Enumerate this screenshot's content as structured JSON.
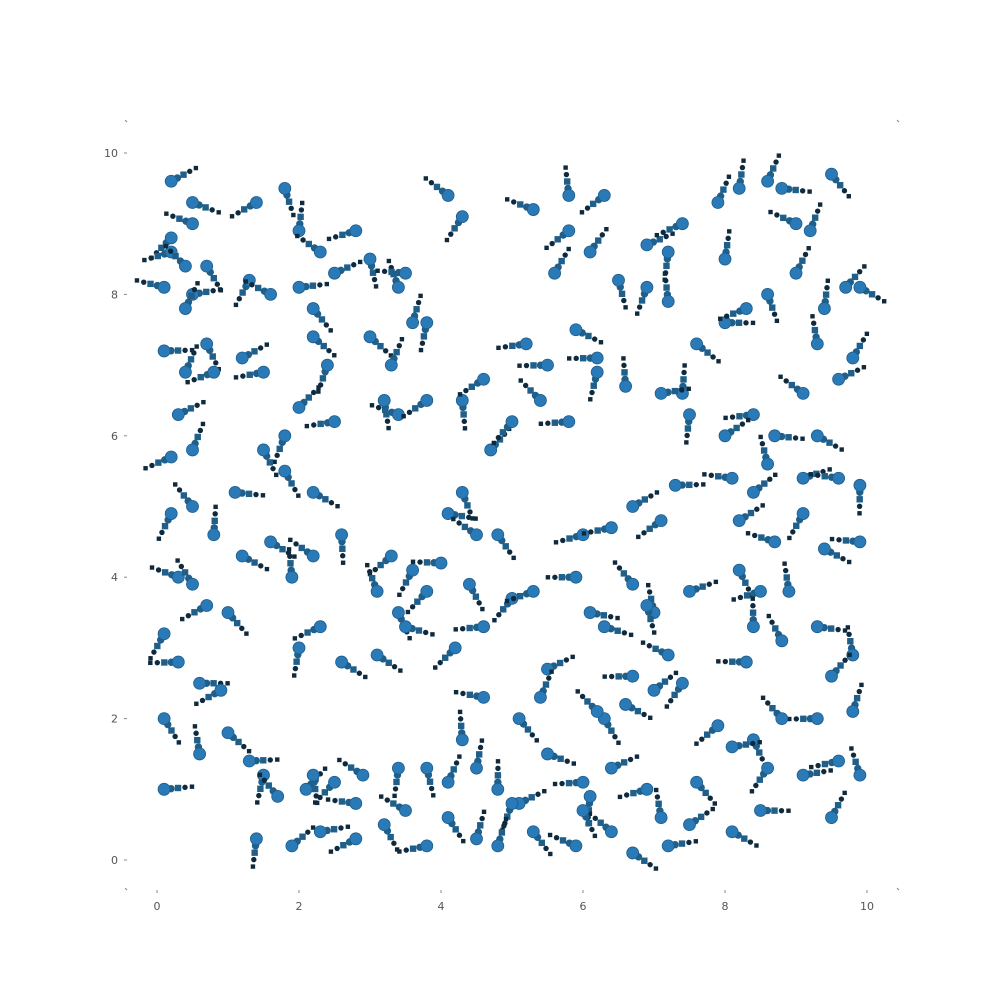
{
  "chart_data": {
    "type": "scatter",
    "title": "",
    "xlabel": "",
    "ylabel": "",
    "xlim": [
      0,
      10
    ],
    "ylim": [
      0,
      10
    ],
    "grid": false,
    "legend": "none",
    "xticks": [
      "0",
      "2",
      "4",
      "6",
      "8",
      "10"
    ],
    "yticks": [
      "0",
      "2",
      "4",
      "6",
      "8",
      "10"
    ],
    "colors": {
      "head": "#2a7ab8",
      "body": "#1f5f8a",
      "tail": "#0f2a3d",
      "axis": "#888888",
      "text": "#555555"
    },
    "description_of_marks": "Comet-like glyphs: large blue head dot followed by a chain of shrinking dark dots/squares (trail).",
    "series": [
      {
        "name": "",
        "points": [
          [
            0.2,
            9.6
          ],
          [
            0.5,
            9.3
          ],
          [
            0.5,
            9.0
          ],
          [
            0.2,
            8.8
          ],
          [
            0.2,
            8.6
          ],
          [
            0.4,
            8.4
          ],
          [
            0.7,
            8.4
          ],
          [
            1.3,
            8.2
          ],
          [
            0.1,
            8.1
          ],
          [
            0.5,
            8.0
          ],
          [
            0.4,
            7.8
          ],
          [
            0.7,
            7.3
          ],
          [
            0.1,
            7.2
          ],
          [
            0.4,
            6.9
          ],
          [
            0.8,
            6.9
          ],
          [
            0.3,
            6.3
          ],
          [
            0.2,
            5.7
          ],
          [
            0.5,
            5.0
          ],
          [
            0.2,
            4.9
          ],
          [
            0.8,
            4.6
          ],
          [
            0.3,
            4.0
          ],
          [
            0.5,
            3.9
          ],
          [
            0.7,
            3.6
          ],
          [
            1.0,
            3.5
          ],
          [
            0.1,
            3.2
          ],
          [
            0.3,
            2.8
          ],
          [
            0.6,
            2.5
          ],
          [
            0.1,
            2.0
          ],
          [
            0.9,
            2.4
          ],
          [
            0.1,
            1.0
          ],
          [
            0.6,
            1.5
          ],
          [
            1.5,
            1.2
          ],
          [
            1.4,
            9.3
          ],
          [
            1.8,
            9.5
          ],
          [
            1.6,
            8.0
          ],
          [
            2.0,
            8.1
          ],
          [
            1.2,
            7.1
          ],
          [
            1.5,
            6.9
          ],
          [
            2.0,
            8.9
          ],
          [
            2.3,
            8.6
          ],
          [
            2.5,
            8.3
          ],
          [
            2.8,
            8.9
          ],
          [
            3.0,
            8.5
          ],
          [
            3.4,
            8.1
          ],
          [
            3.6,
            7.6
          ],
          [
            3.8,
            7.6
          ],
          [
            3.5,
            8.3
          ],
          [
            2.2,
            7.8
          ],
          [
            2.2,
            7.4
          ],
          [
            2.4,
            7.0
          ],
          [
            3.0,
            7.4
          ],
          [
            3.3,
            7.0
          ],
          [
            3.4,
            6.3
          ],
          [
            3.8,
            6.5
          ],
          [
            2.0,
            6.4
          ],
          [
            2.5,
            6.2
          ],
          [
            3.2,
            6.5
          ],
          [
            1.8,
            6.0
          ],
          [
            1.5,
            5.8
          ],
          [
            1.8,
            5.5
          ],
          [
            2.2,
            5.2
          ],
          [
            0.5,
            5.8
          ],
          [
            1.1,
            5.2
          ],
          [
            1.6,
            4.5
          ],
          [
            1.2,
            4.3
          ],
          [
            2.2,
            4.3
          ],
          [
            2.6,
            4.6
          ],
          [
            3.3,
            4.3
          ],
          [
            3.6,
            4.1
          ],
          [
            3.8,
            3.8
          ],
          [
            4.0,
            4.2
          ],
          [
            4.4,
            3.9
          ],
          [
            4.1,
            4.9
          ],
          [
            4.3,
            5.2
          ],
          [
            4.5,
            4.6
          ],
          [
            4.8,
            4.6
          ],
          [
            3.1,
            3.8
          ],
          [
            3.4,
            3.5
          ],
          [
            3.5,
            3.3
          ],
          [
            1.9,
            4.0
          ],
          [
            2.3,
            3.3
          ],
          [
            2.6,
            2.8
          ],
          [
            2.0,
            3.0
          ],
          [
            3.1,
            2.9
          ],
          [
            4.2,
            3.0
          ],
          [
            4.6,
            3.3
          ],
          [
            5.0,
            3.7
          ],
          [
            5.3,
            3.8
          ],
          [
            5.5,
            2.7
          ],
          [
            5.4,
            2.3
          ],
          [
            5.1,
            2.0
          ],
          [
            4.6,
            2.3
          ],
          [
            4.3,
            1.7
          ],
          [
            4.5,
            1.3
          ],
          [
            4.8,
            1.0
          ],
          [
            5.1,
            0.8
          ],
          [
            5.3,
            0.4
          ],
          [
            5.5,
            1.5
          ],
          [
            6.0,
            1.1
          ],
          [
            6.1,
            0.9
          ],
          [
            6.4,
            1.3
          ],
          [
            6.6,
            2.2
          ],
          [
            6.3,
            2.0
          ],
          [
            6.7,
            2.6
          ],
          [
            7.0,
            2.4
          ],
          [
            7.4,
            2.5
          ],
          [
            7.2,
            2.9
          ],
          [
            7.0,
            3.5
          ],
          [
            7.5,
            3.8
          ],
          [
            6.9,
            3.6
          ],
          [
            6.7,
            3.9
          ],
          [
            6.3,
            3.3
          ],
          [
            6.1,
            3.5
          ],
          [
            5.9,
            4.0
          ],
          [
            6.0,
            4.6
          ],
          [
            6.4,
            4.7
          ],
          [
            6.7,
            5.0
          ],
          [
            7.1,
            4.8
          ],
          [
            7.3,
            5.3
          ],
          [
            7.5,
            6.3
          ],
          [
            7.4,
            6.6
          ],
          [
            7.1,
            6.6
          ],
          [
            7.6,
            7.3
          ],
          [
            8.0,
            7.6
          ],
          [
            7.2,
            7.9
          ],
          [
            6.9,
            8.1
          ],
          [
            6.5,
            8.2
          ],
          [
            6.9,
            8.7
          ],
          [
            7.2,
            8.6
          ],
          [
            7.4,
            9.0
          ],
          [
            7.9,
            9.3
          ],
          [
            8.2,
            9.5
          ],
          [
            8.8,
            9.5
          ],
          [
            9.0,
            9.0
          ],
          [
            8.6,
            9.6
          ],
          [
            9.5,
            9.7
          ],
          [
            9.2,
            8.9
          ],
          [
            9.0,
            8.3
          ],
          [
            8.6,
            8.0
          ],
          [
            8.3,
            7.8
          ],
          [
            8.0,
            8.5
          ],
          [
            9.4,
            7.8
          ],
          [
            9.7,
            8.1
          ],
          [
            9.9,
            8.1
          ],
          [
            9.3,
            7.3
          ],
          [
            9.8,
            7.1
          ],
          [
            9.6,
            6.8
          ],
          [
            9.1,
            6.6
          ],
          [
            8.4,
            6.3
          ],
          [
            8.0,
            6.0
          ],
          [
            8.7,
            6.0
          ],
          [
            9.3,
            6.0
          ],
          [
            8.6,
            5.6
          ],
          [
            8.1,
            5.4
          ],
          [
            8.4,
            5.2
          ],
          [
            9.1,
            5.4
          ],
          [
            9.6,
            5.4
          ],
          [
            9.9,
            5.3
          ],
          [
            9.1,
            4.9
          ],
          [
            8.2,
            4.8
          ],
          [
            8.7,
            4.5
          ],
          [
            9.4,
            4.4
          ],
          [
            9.9,
            4.5
          ],
          [
            8.2,
            4.1
          ],
          [
            8.5,
            3.8
          ],
          [
            8.9,
            3.8
          ],
          [
            8.4,
            3.3
          ],
          [
            8.3,
            2.8
          ],
          [
            8.8,
            3.1
          ],
          [
            9.3,
            3.3
          ],
          [
            9.8,
            2.9
          ],
          [
            9.5,
            2.6
          ],
          [
            9.8,
            2.1
          ],
          [
            9.3,
            2.0
          ],
          [
            8.8,
            2.0
          ],
          [
            8.4,
            1.7
          ],
          [
            7.9,
            1.9
          ],
          [
            8.1,
            1.6
          ],
          [
            8.6,
            1.3
          ],
          [
            9.1,
            1.2
          ],
          [
            9.6,
            1.4
          ],
          [
            9.9,
            1.2
          ],
          [
            9.5,
            0.6
          ],
          [
            8.5,
            0.7
          ],
          [
            8.1,
            0.4
          ],
          [
            7.5,
            0.5
          ],
          [
            7.1,
            0.6
          ],
          [
            6.9,
            1.0
          ],
          [
            7.6,
            1.1
          ],
          [
            6.4,
            0.4
          ],
          [
            6.0,
            0.7
          ],
          [
            5.9,
            0.2
          ],
          [
            6.7,
            0.1
          ],
          [
            7.2,
            0.2
          ],
          [
            6.2,
            2.1
          ],
          [
            5.0,
            0.8
          ],
          [
            4.5,
            0.3
          ],
          [
            4.1,
            0.6
          ],
          [
            3.8,
            0.2
          ],
          [
            3.5,
            0.7
          ],
          [
            3.2,
            0.5
          ],
          [
            2.8,
            0.8
          ],
          [
            2.5,
            1.1
          ],
          [
            2.1,
            1.0
          ],
          [
            1.7,
            0.9
          ],
          [
            1.4,
            0.3
          ],
          [
            1.9,
            0.2
          ],
          [
            2.3,
            0.4
          ],
          [
            2.8,
            0.3
          ],
          [
            3.4,
            1.3
          ],
          [
            3.8,
            1.3
          ],
          [
            4.1,
            1.1
          ],
          [
            4.8,
            0.2
          ],
          [
            2.9,
            1.2
          ],
          [
            2.2,
            1.2
          ],
          [
            1.3,
            1.4
          ],
          [
            1.0,
            1.8
          ],
          [
            4.7,
            5.8
          ],
          [
            5.0,
            6.2
          ],
          [
            5.4,
            6.5
          ],
          [
            5.8,
            6.2
          ],
          [
            6.2,
            6.9
          ],
          [
            6.6,
            6.7
          ],
          [
            5.2,
            7.3
          ],
          [
            5.5,
            7.0
          ],
          [
            5.9,
            7.5
          ],
          [
            6.2,
            7.1
          ],
          [
            5.6,
            8.3
          ],
          [
            5.8,
            8.9
          ],
          [
            6.1,
            8.6
          ],
          [
            5.3,
            9.2
          ],
          [
            5.8,
            9.4
          ],
          [
            6.3,
            9.4
          ],
          [
            4.3,
            9.1
          ],
          [
            4.1,
            9.4
          ],
          [
            4.3,
            6.5
          ],
          [
            4.6,
            6.8
          ]
        ]
      }
    ]
  }
}
